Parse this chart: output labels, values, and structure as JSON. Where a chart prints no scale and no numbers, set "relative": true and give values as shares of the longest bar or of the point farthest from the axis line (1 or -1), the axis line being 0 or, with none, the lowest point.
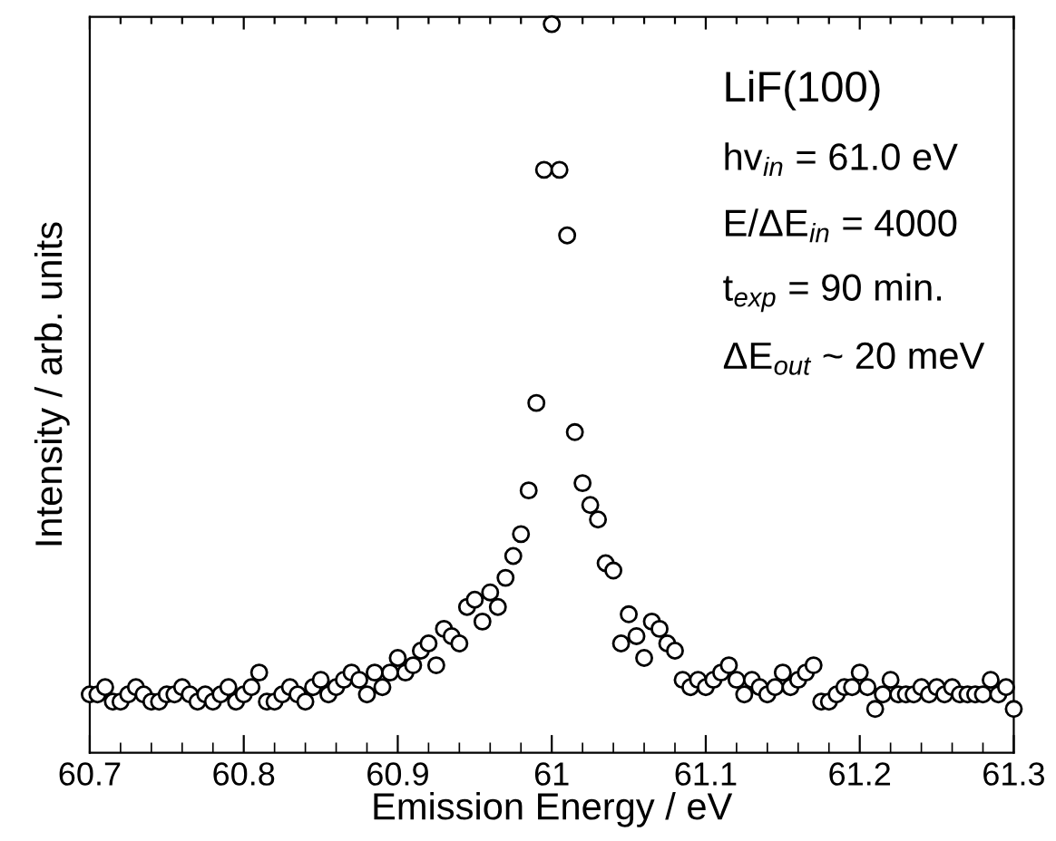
{
  "chart_data": {
    "type": "scatter",
    "relative": true,
    "xlabel": "Emission Energy / eV",
    "ylabel": "Intensity / arb. units",
    "xlim": [
      60.7,
      61.3
    ],
    "xticks": [
      60.7,
      60.8,
      60.9,
      61,
      61.1,
      61.2,
      61.3
    ],
    "marker": "circle",
    "grid": false,
    "legend": false,
    "annotations": [
      "LiF(100)",
      "hv$_{in}$ = 61.0 eV",
      "E/ΔE$_{in}$ = 4000",
      "t$_{exp}$ = 90 min.",
      "ΔE$_{out}$ ~ 20 meV"
    ],
    "series": [
      {
        "color": "#000000",
        "x": [
          60.7,
          60.705,
          60.71,
          60.715,
          60.72,
          60.725,
          60.73,
          60.735,
          60.74,
          60.745,
          60.75,
          60.755,
          60.76,
          60.765,
          60.77,
          60.775,
          60.78,
          60.785,
          60.79,
          60.795,
          60.8,
          60.805,
          60.81,
          60.815,
          60.82,
          60.825,
          60.83,
          60.835,
          60.84,
          60.845,
          60.85,
          60.855,
          60.86,
          60.865,
          60.87,
          60.875,
          60.88,
          60.885,
          60.89,
          60.895,
          60.9,
          60.905,
          60.91,
          60.915,
          60.92,
          60.925,
          60.93,
          60.935,
          60.94,
          60.945,
          60.95,
          60.955,
          60.96,
          60.965,
          60.97,
          60.975,
          60.98,
          60.985,
          60.99,
          60.995,
          61.0,
          61.005,
          61.01,
          61.015,
          61.02,
          61.025,
          61.03,
          61.035,
          61.04,
          61.045,
          61.05,
          61.055,
          61.06,
          61.065,
          61.07,
          61.075,
          61.08,
          61.085,
          61.09,
          61.095,
          61.1,
          61.105,
          61.11,
          61.115,
          61.12,
          61.125,
          61.13,
          61.135,
          61.14,
          61.145,
          61.15,
          61.155,
          61.16,
          61.165,
          61.17,
          61.175,
          61.18,
          61.185,
          61.19,
          61.195,
          61.2,
          61.205,
          61.21,
          61.215,
          61.22,
          61.225,
          61.23,
          61.235,
          61.24,
          61.245,
          61.25,
          61.255,
          61.26,
          61.265,
          61.27,
          61.275,
          61.28,
          61.285,
          61.29,
          61.295,
          61.3
        ],
        "values": [
          0.08,
          0.08,
          0.09,
          0.07,
          0.07,
          0.08,
          0.09,
          0.08,
          0.07,
          0.07,
          0.08,
          0.08,
          0.09,
          0.08,
          0.07,
          0.08,
          0.07,
          0.08,
          0.09,
          0.07,
          0.08,
          0.09,
          0.11,
          0.07,
          0.07,
          0.08,
          0.09,
          0.08,
          0.07,
          0.09,
          0.1,
          0.08,
          0.09,
          0.1,
          0.11,
          0.1,
          0.08,
          0.11,
          0.09,
          0.11,
          0.13,
          0.11,
          0.12,
          0.14,
          0.15,
          0.12,
          0.17,
          0.16,
          0.15,
          0.2,
          0.21,
          0.18,
          0.22,
          0.2,
          0.24,
          0.27,
          0.3,
          0.36,
          0.48,
          0.8,
          1.0,
          0.8,
          0.71,
          0.44,
          0.37,
          0.34,
          0.32,
          0.26,
          0.25,
          0.15,
          0.19,
          0.16,
          0.13,
          0.18,
          0.17,
          0.15,
          0.14,
          0.1,
          0.09,
          0.1,
          0.09,
          0.1,
          0.11,
          0.12,
          0.1,
          0.08,
          0.1,
          0.09,
          0.08,
          0.09,
          0.11,
          0.09,
          0.1,
          0.11,
          0.12,
          0.07,
          0.07,
          0.08,
          0.09,
          0.09,
          0.11,
          0.09,
          0.06,
          0.08,
          0.1,
          0.08,
          0.08,
          0.08,
          0.09,
          0.08,
          0.09,
          0.08,
          0.09,
          0.08,
          0.08,
          0.08,
          0.08,
          0.1,
          0.08,
          0.09,
          0.06
        ]
      }
    ]
  }
}
